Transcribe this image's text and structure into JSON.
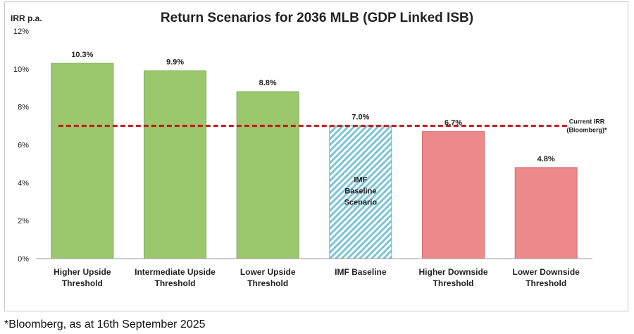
{
  "chart_data": {
    "type": "bar",
    "title": "Return Scenarios for 2036 MLB (GDP Linked ISB)",
    "ylabel": "IRR p.a.",
    "xlabel": "",
    "ylim": [
      0,
      12
    ],
    "yticks": [
      "0%",
      "2%",
      "4%",
      "6%",
      "8%",
      "10%",
      "12%"
    ],
    "ytick_values": [
      0,
      2,
      4,
      6,
      8,
      10,
      12
    ],
    "grid": false,
    "categories": [
      [
        "Higher Upside",
        "Threshold"
      ],
      [
        "Intermediate Upside",
        "Threshold"
      ],
      [
        "Lower Upside",
        "Threshold"
      ],
      [
        "IMF Baseline"
      ],
      [
        "Higher Downside",
        "Threshold"
      ],
      [
        "Lower Downside",
        "Threshold"
      ]
    ],
    "values": [
      10.3,
      9.9,
      8.8,
      7.0,
      6.7,
      4.8
    ],
    "value_labels": [
      "10.3%",
      "9.9%",
      "8.8%",
      "7.0%",
      "6.7%",
      "4.8%"
    ],
    "bar_styles": [
      "upside",
      "upside",
      "upside",
      "baseline",
      "downside",
      "downside"
    ],
    "reference_line": {
      "value": 7.0,
      "label": [
        "Current IRR",
        "(Bloomberg)*"
      ],
      "style": "dashed"
    },
    "bar_annotation": {
      "index": 3,
      "lines": [
        "IMF",
        "Baseline",
        "Scenario"
      ]
    },
    "colors": {
      "upside_fill": "#9bc86c",
      "upside_stroke": "#7aa84f",
      "baseline_stripe": "#7cc4d8",
      "baseline_stroke": "#6ab3c9",
      "downside_fill": "#ec8a8a",
      "downside_stroke": "#d66f6f",
      "reference_line": "#c0161c",
      "axis": "#9a9a9a",
      "text": "#222222"
    }
  },
  "footnote": "*Bloomberg, as at 16th September 2025"
}
